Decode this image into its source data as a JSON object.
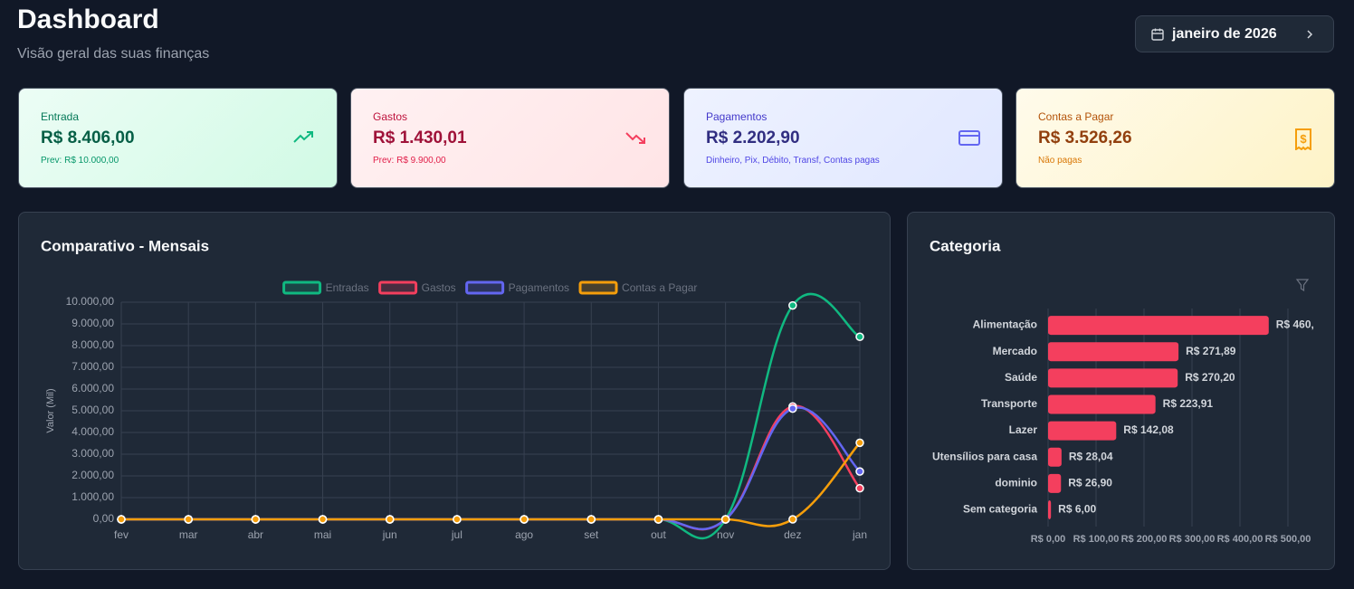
{
  "header": {
    "title": "Dashboard",
    "subtitle": "Visão geral das suas finanças",
    "period": "janeiro de 2026"
  },
  "cards": [
    {
      "label": "Entrada",
      "value": "R$ 8.406,00",
      "note": "Prev: R$ 10.000,00"
    },
    {
      "label": "Gastos",
      "value": "R$ 1.430,01",
      "note": "Prev: R$ 9.900,00"
    },
    {
      "label": "Pagamentos",
      "value": "R$ 2.202,90",
      "note": "Dinheiro, Pix, Débito, Transf, Contas pagas"
    },
    {
      "label": "Contas a Pagar",
      "value": "R$ 3.526,26",
      "note": "Não pagas"
    }
  ],
  "chart_data": [
    {
      "type": "line",
      "title": "Comparativo - Mensais",
      "y_label": "Valor (Mil)",
      "categories": [
        "fev",
        "mar",
        "abr",
        "mai",
        "jun",
        "jul",
        "ago",
        "set",
        "out",
        "nov",
        "dez",
        "jan"
      ],
      "series": [
        {
          "name": "Entradas",
          "color": "#10b981",
          "values": [
            0,
            0,
            0,
            0,
            0,
            0,
            0,
            0,
            0,
            0,
            9850,
            8406
          ]
        },
        {
          "name": "Gastos",
          "color": "#f43f5e",
          "values": [
            0,
            0,
            0,
            0,
            0,
            0,
            0,
            0,
            0,
            0,
            5200,
            1430.01
          ]
        },
        {
          "name": "Pagamentos",
          "color": "#6366f1",
          "values": [
            0,
            0,
            0,
            0,
            0,
            0,
            0,
            0,
            0,
            0,
            5100,
            2202.9
          ]
        },
        {
          "name": "Contas a Pagar",
          "color": "#f59e0b",
          "values": [
            0,
            0,
            0,
            0,
            0,
            0,
            0,
            0,
            0,
            0,
            0,
            3526.26
          ]
        }
      ],
      "ylim": [
        0,
        10000
      ],
      "yticks": [
        {
          "value": 0,
          "label": "0,00"
        },
        {
          "value": 1000,
          "label": "1.000,00"
        },
        {
          "value": 2000,
          "label": "2.000,00"
        },
        {
          "value": 3000,
          "label": "3.000,00"
        },
        {
          "value": 4000,
          "label": "4.000,00"
        },
        {
          "value": 5000,
          "label": "5.000,00"
        },
        {
          "value": 6000,
          "label": "6.000,00"
        },
        {
          "value": 7000,
          "label": "7.000,00"
        },
        {
          "value": 8000,
          "label": "8.000,00"
        },
        {
          "value": 9000,
          "label": "9.000,00"
        },
        {
          "value": 10000,
          "label": "10.000,00"
        }
      ],
      "grid": true,
      "legend": "top"
    },
    {
      "type": "bar",
      "orientation": "horizontal",
      "title": "Categoria",
      "categories": [
        "Alimentação",
        "Mercado",
        "Saúde",
        "Transporte",
        "Lazer",
        "Utensílios para casa",
        "dominio",
        "Sem categoria"
      ],
      "values": [
        460,
        271.89,
        270.2,
        223.91,
        142.08,
        28.04,
        26.9,
        6
      ],
      "value_labels": [
        "R$ 460,",
        "R$ 271,89",
        "R$ 270,20",
        "R$ 223,91",
        "R$ 142,08",
        "R$ 28,04",
        "R$ 26,90",
        "R$ 6,00"
      ],
      "color": "#f43f5e",
      "xlim": [
        0,
        500
      ],
      "xticks": [
        {
          "value": 0,
          "label": "R$ 0,00"
        },
        {
          "value": 100,
          "label": "R$ 100,00"
        },
        {
          "value": 200,
          "label": "R$ 200,00"
        },
        {
          "value": 300,
          "label": "R$ 300,00"
        },
        {
          "value": 400,
          "label": "R$ 400,00"
        },
        {
          "value": 500,
          "label": "R$ 500,00"
        }
      ],
      "grid": true
    }
  ]
}
